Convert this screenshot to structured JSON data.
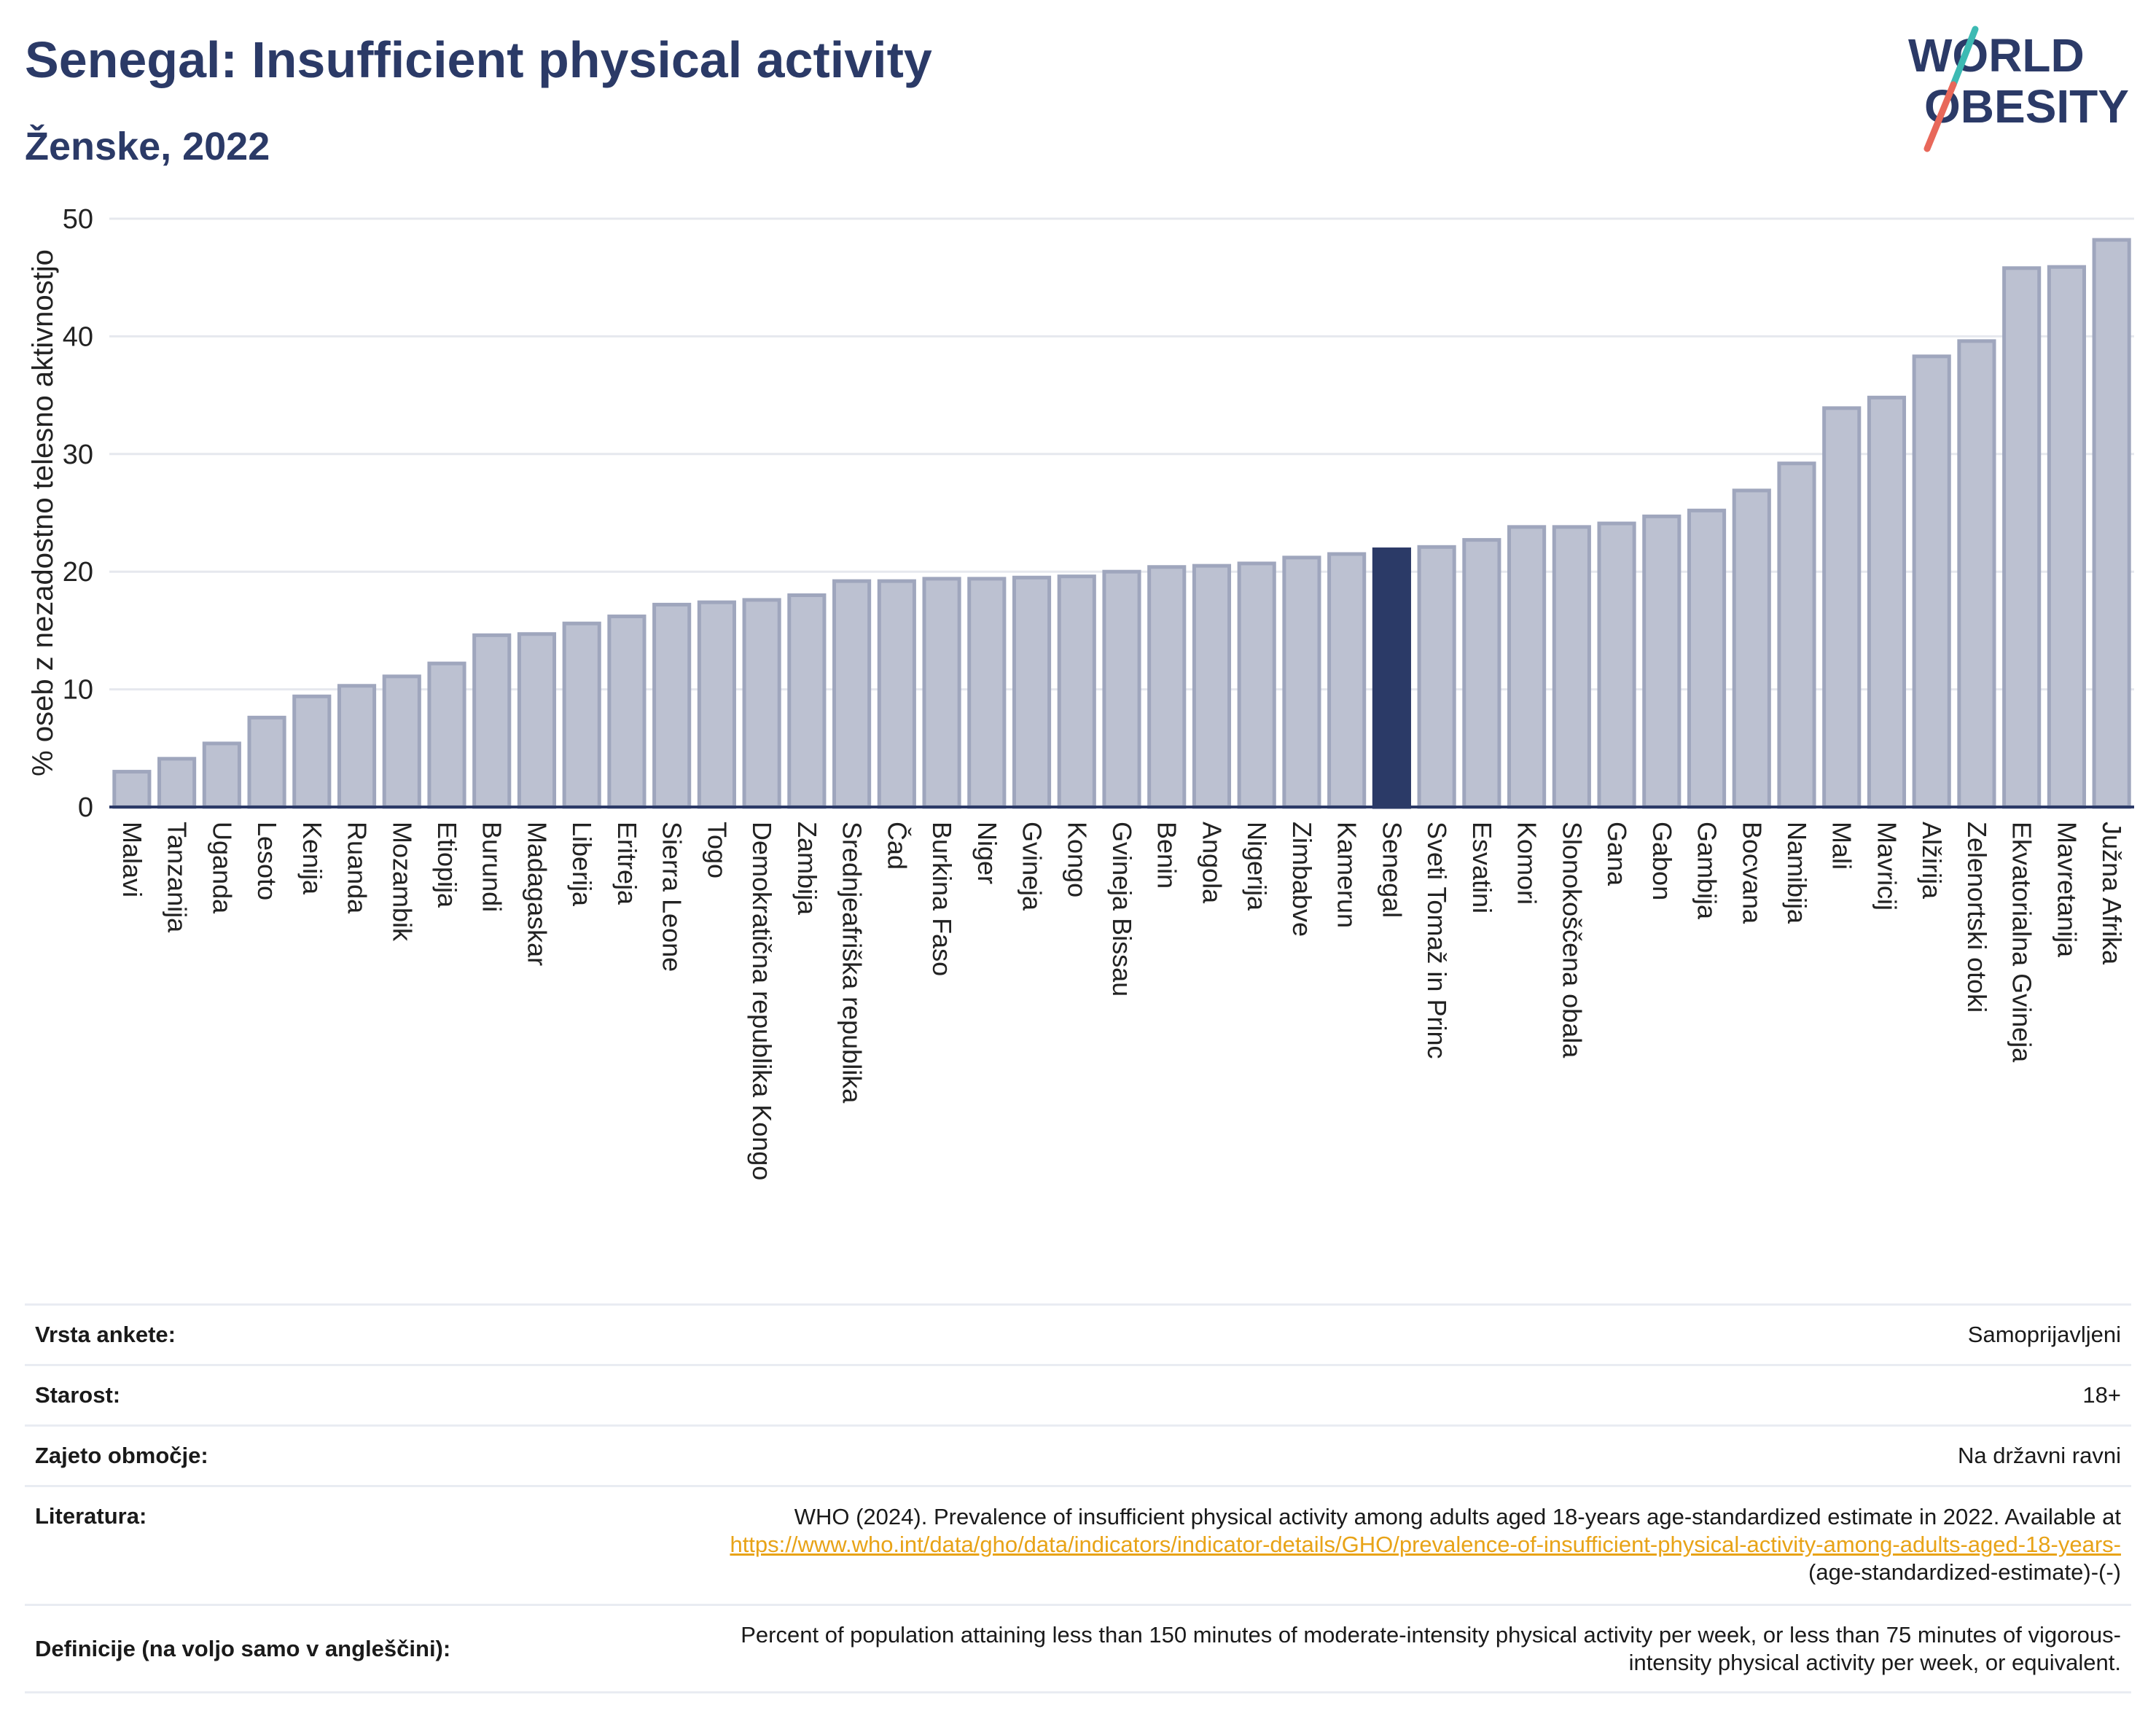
{
  "header": {
    "title": "Senegal: Insufficient physical activity",
    "subtitle": "Ženske, 2022"
  },
  "logo": {
    "line1": "WORLD",
    "line2": "OBESITY",
    "accent_colors": [
      "#3dbab3",
      "#e8685a"
    ]
  },
  "chart_data": {
    "type": "bar",
    "ylabel": "% oseb z nezadostno telesno aktivnostjo",
    "ylim": [
      0,
      50
    ],
    "yticks": [
      0,
      10,
      20,
      30,
      40,
      50
    ],
    "grid": true,
    "highlight": "Senegal",
    "colors": {
      "bar": "#bcc1d1",
      "bar_edge": "#9fa6bd",
      "highlight": "#2b3a67",
      "grid": "#e6e8ee"
    },
    "categories": [
      "Malavi",
      "Tanzanija",
      "Uganda",
      "Lesoto",
      "Kenija",
      "Ruanda",
      "Mozambik",
      "Etiopija",
      "Burundi",
      "Madagaskar",
      "Liberija",
      "Eritreja",
      "Sierra Leone",
      "Togo",
      "Demokratična republika Kongo",
      "Zambija",
      "Srednjeafriška republika",
      "Čad",
      "Burkina Faso",
      "Niger",
      "Gvineja",
      "Kongo",
      "Gvineja Bissau",
      "Benin",
      "Angola",
      "Nigerija",
      "Zimbabve",
      "Kamerun",
      "Senegal",
      "Sveti Tomaž in Princ",
      "Esvatini",
      "Komori",
      "Slonokoščena obala",
      "Gana",
      "Gabon",
      "Gambija",
      "Bocvana",
      "Namibija",
      "Mali",
      "Mavricij",
      "Alžirija",
      "Zelenortski otoki",
      "Ekvatorialna Gvineja",
      "Mavretanija",
      "Južna Afrika"
    ],
    "values": [
      3.0,
      4.1,
      5.4,
      7.6,
      9.4,
      10.3,
      11.1,
      12.2,
      14.6,
      14.7,
      15.6,
      16.2,
      17.2,
      17.4,
      17.6,
      18.0,
      19.2,
      19.2,
      19.4,
      19.4,
      19.5,
      19.6,
      20.0,
      20.4,
      20.5,
      20.7,
      21.2,
      21.5,
      21.9,
      22.1,
      22.7,
      23.8,
      23.8,
      24.1,
      24.7,
      25.2,
      26.9,
      29.2,
      33.9,
      34.8,
      38.3,
      39.6,
      45.8,
      45.9,
      48.2
    ]
  },
  "info": {
    "survey_label": "Vrsta ankete:",
    "survey_value": "Samoprijavljeni",
    "age_label": "Starost:",
    "age_value": "18+",
    "area_label": "Zajeto območje:",
    "area_value": "Na državni ravni",
    "literature_label": "Literatura:",
    "literature_text": "WHO (2024). Prevalence of insufficient physical activity among adults aged 18-years age-standardized estimate in 2022. Available at",
    "literature_link": "https://www.who.int/data/gho/data/indicators/indicator-details/GHO/prevalence-of-insufficient-physical-activity-among-adults-aged-18-years-",
    "literature_tail": "(age-standardized-estimate)-(-)",
    "definition_label": "Definicije (na voljo samo v angleščini):",
    "definition_value": "Percent of population attaining less than 150 minutes of moderate-intensity physical activity per week, or less than 75 minutes of vigorous-intensity physical activity per week, or equivalent."
  }
}
